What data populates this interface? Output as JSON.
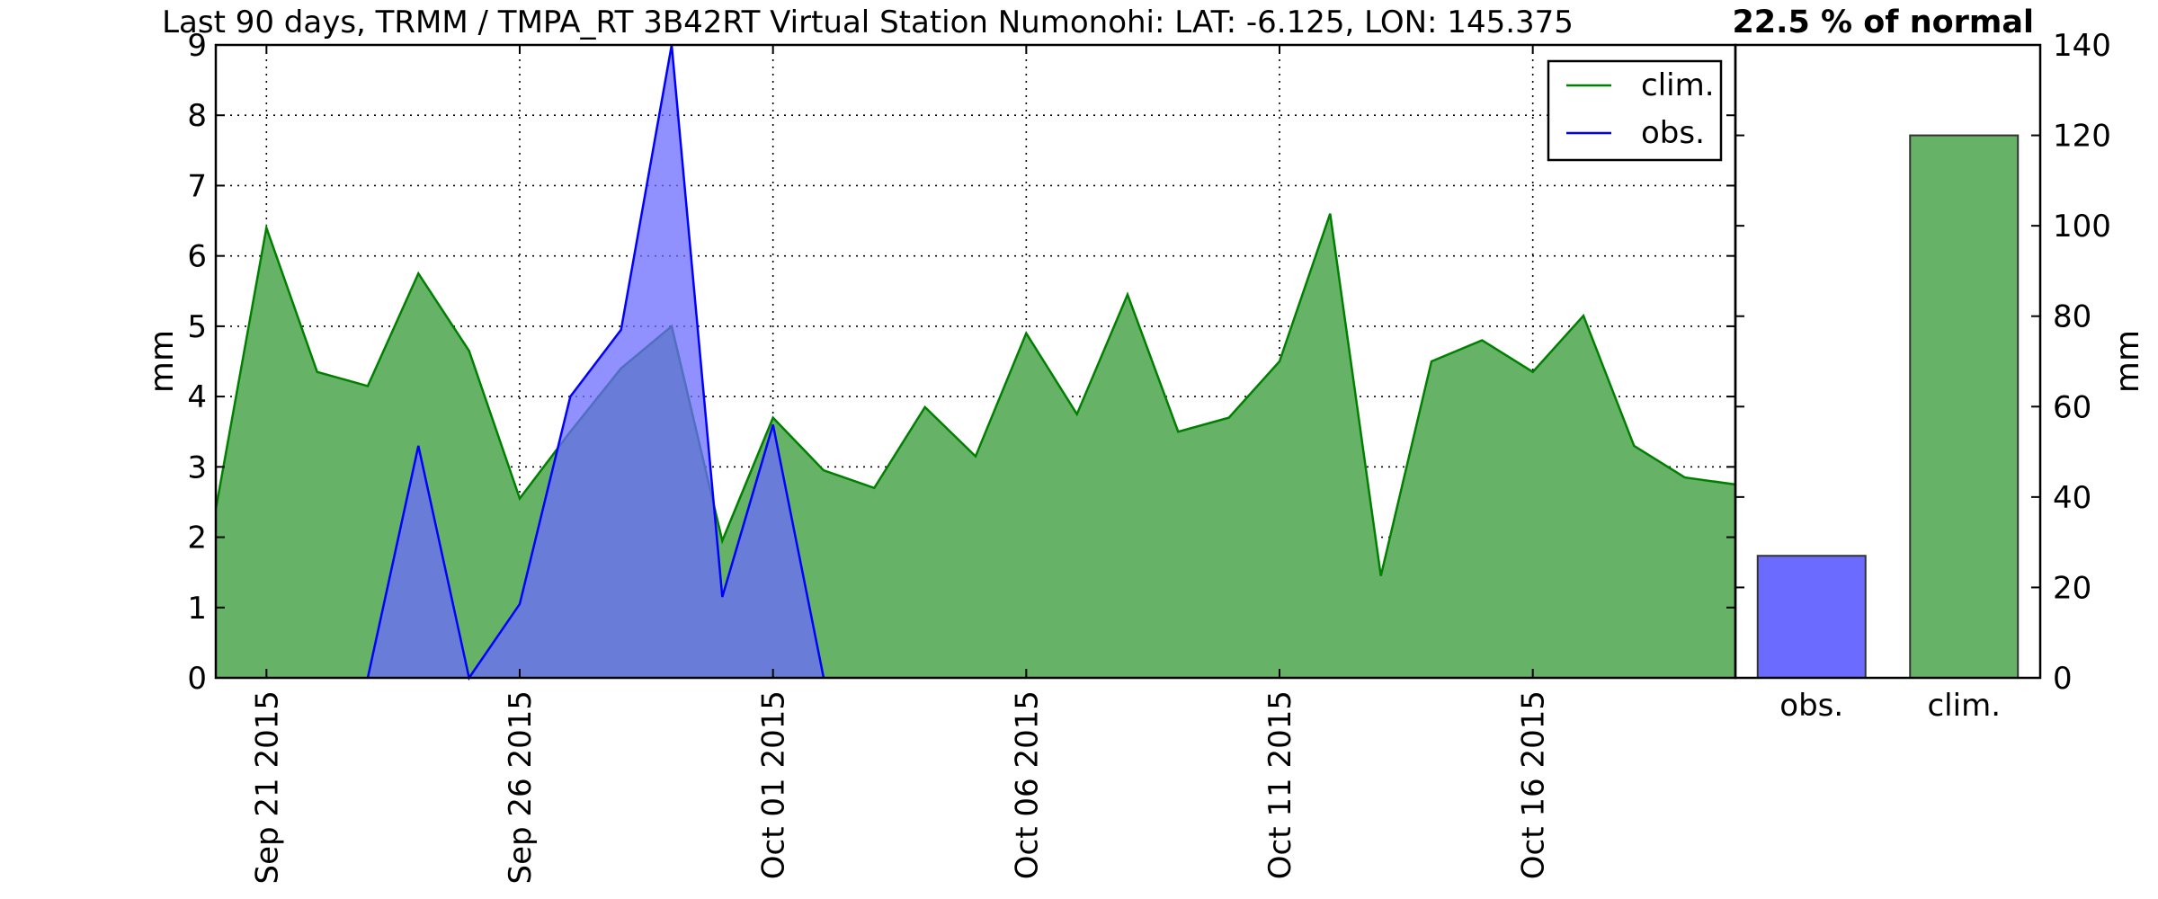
{
  "chart_data": [
    {
      "type": "area",
      "title": "Last 90 days, TRMM / TMPA_RT 3B42RT Virtual Station Numonohi: LAT: -6.125, LON: 145.375",
      "ylabel": "mm",
      "ylim": [
        0,
        9
      ],
      "yticks": [
        "0",
        "1",
        "2",
        "3",
        "4",
        "5",
        "6",
        "7",
        "8",
        "9"
      ],
      "grid": true,
      "legend_position": "top-right",
      "x": [
        "2015-09-20",
        "2015-09-21",
        "2015-09-22",
        "2015-09-23",
        "2015-09-24",
        "2015-09-25",
        "2015-09-26",
        "2015-09-27",
        "2015-09-28",
        "2015-09-29",
        "2015-09-30",
        "2015-10-01",
        "2015-10-02",
        "2015-10-03",
        "2015-10-04",
        "2015-10-05",
        "2015-10-06",
        "2015-10-07",
        "2015-10-08",
        "2015-10-09",
        "2015-10-10",
        "2015-10-11",
        "2015-10-12",
        "2015-10-13",
        "2015-10-14",
        "2015-10-15",
        "2015-10-16",
        "2015-10-17",
        "2015-10-18",
        "2015-10-19",
        "2015-10-20"
      ],
      "xticks": [
        "Sep 21 2015",
        "Sep 26 2015",
        "Oct 01 2015",
        "Oct 06 2015",
        "Oct 11 2015",
        "Oct 16 2015"
      ],
      "xtick_dates": [
        "2015-09-21",
        "2015-09-26",
        "2015-10-01",
        "2015-10-06",
        "2015-10-11",
        "2015-10-16"
      ],
      "series": [
        {
          "name": "clim.",
          "color": "#008000",
          "fill": "#66b266",
          "x": [
            "2015-09-20",
            "2015-09-21",
            "2015-09-22",
            "2015-09-23",
            "2015-09-24",
            "2015-09-25",
            "2015-09-26",
            "2015-09-27",
            "2015-09-28",
            "2015-09-29",
            "2015-09-30",
            "2015-10-01",
            "2015-10-02",
            "2015-10-03",
            "2015-10-04",
            "2015-10-05",
            "2015-10-06",
            "2015-10-07",
            "2015-10-08",
            "2015-10-09",
            "2015-10-10",
            "2015-10-11",
            "2015-10-12",
            "2015-10-13",
            "2015-10-14",
            "2015-10-15",
            "2015-10-16",
            "2015-10-17",
            "2015-10-18",
            "2015-10-19",
            "2015-10-20"
          ],
          "values": [
            2.4,
            6.4,
            4.35,
            4.15,
            5.75,
            4.65,
            2.55,
            3.5,
            4.4,
            5.0,
            1.95,
            3.7,
            2.95,
            2.7,
            3.85,
            3.15,
            4.9,
            3.75,
            5.45,
            3.5,
            3.7,
            4.5,
            6.6,
            1.45,
            4.5,
            4.8,
            4.35,
            5.15,
            3.3,
            2.85,
            2.75
          ]
        },
        {
          "name": "obs.",
          "color": "#0000ff",
          "fill": "#6b6bff",
          "x": [
            "2015-09-23",
            "2015-09-24",
            "2015-09-25",
            "2015-09-26",
            "2015-09-27",
            "2015-09-28",
            "2015-09-29",
            "2015-09-30",
            "2015-10-01",
            "2015-10-02"
          ],
          "values": [
            0,
            3.3,
            0,
            1.05,
            4.0,
            4.95,
            9.0,
            1.15,
            3.6,
            0
          ]
        }
      ]
    },
    {
      "type": "bar",
      "title": "22.5 % of normal",
      "ylabel": "mm",
      "ylim": [
        0,
        140
      ],
      "yticks": [
        "0",
        "20",
        "40",
        "60",
        "80",
        "100",
        "120",
        "140"
      ],
      "categories": [
        "obs.",
        "clim."
      ],
      "values": [
        27,
        120
      ],
      "colors": [
        "#6b6bff",
        "#66b266"
      ]
    }
  ]
}
